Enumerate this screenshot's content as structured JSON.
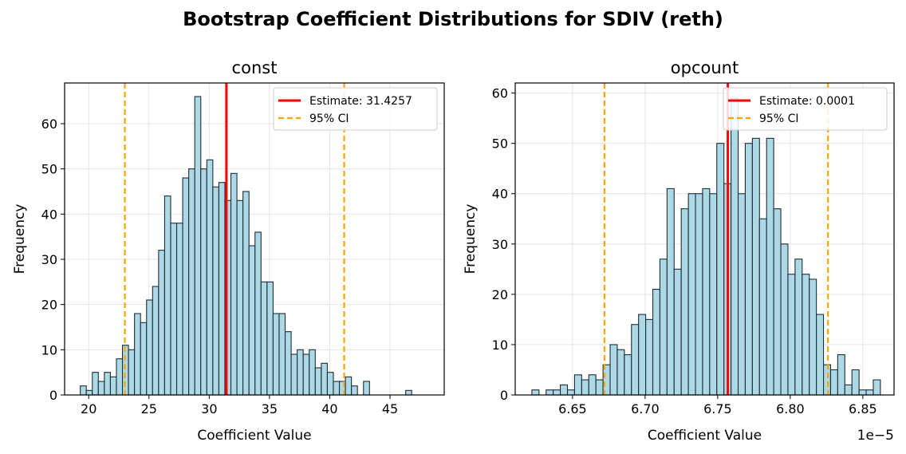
{
  "figure": {
    "title": "Bootstrap Coefficient Distributions for SDIV (reth)"
  },
  "colors": {
    "bar_fill": "#add8e6",
    "bar_edge": "#1f2e33",
    "estimate": "#ff0000",
    "ci": "#ffa500",
    "grid": "#e4e4e4"
  },
  "chart_data": [
    {
      "type": "bar",
      "title": "const",
      "xlabel": "Coefficient Value",
      "ylabel": "Frequency",
      "xlim": [
        18,
        49.5
      ],
      "ylim": [
        0,
        69
      ],
      "xticks": [
        20,
        25,
        30,
        35,
        40,
        45
      ],
      "xtick_labels": [
        "20",
        "25",
        "30",
        "35",
        "40",
        "45"
      ],
      "yticks": [
        0,
        10,
        20,
        30,
        40,
        50,
        60
      ],
      "ytick_labels": [
        "0",
        "10",
        "20",
        "30",
        "40",
        "50",
        "60"
      ],
      "offset_text": "",
      "bin_start": 19.3,
      "bin_width": 0.5,
      "values": [
        2,
        1,
        5,
        3,
        5,
        4,
        8,
        11,
        10,
        18,
        16,
        21,
        24,
        32,
        44,
        38,
        38,
        48,
        50,
        66,
        50,
        52,
        46,
        47,
        43,
        49,
        43,
        45,
        33,
        36,
        25,
        25,
        18,
        18,
        14,
        9,
        10,
        9,
        10,
        6,
        7,
        5,
        3,
        3,
        4,
        2,
        0,
        3,
        0,
        0,
        0,
        0,
        0,
        0,
        1
      ],
      "estimate": {
        "value": 31.4257,
        "label": "Estimate: 31.4257"
      },
      "ci": {
        "lower": 23.0,
        "upper": 41.2,
        "label": "95% CI"
      },
      "grid": true,
      "legend_position": "top-right"
    },
    {
      "type": "bar",
      "title": "opcount",
      "xlabel": "Coefficient Value",
      "ylabel": "Frequency",
      "xlim": [
        6.6105,
        6.8715
      ],
      "ylim": [
        0,
        62
      ],
      "xticks": [
        6.65,
        6.7,
        6.75,
        6.8,
        6.85
      ],
      "xtick_labels": [
        "6.65",
        "6.70",
        "6.75",
        "6.80",
        "6.85"
      ],
      "yticks": [
        0,
        10,
        20,
        30,
        40,
        50,
        60
      ],
      "ytick_labels": [
        "0",
        "10",
        "20",
        "30",
        "40",
        "50",
        "60"
      ],
      "offset_text": "1e−5",
      "bin_start": 6.622,
      "bin_width": 0.0049,
      "values": [
        1,
        0,
        1,
        1,
        2,
        1,
        4,
        3,
        4,
        3,
        6,
        10,
        9,
        8,
        14,
        16,
        15,
        21,
        27,
        41,
        25,
        37,
        40,
        40,
        41,
        40,
        50,
        42,
        59,
        40,
        50,
        51,
        35,
        51,
        37,
        30,
        24,
        27,
        24,
        23,
        16,
        6,
        5,
        8,
        2,
        5,
        1,
        1,
        3
      ],
      "estimate": {
        "value": 6.757,
        "label": "Estimate: 0.0001"
      },
      "ci": {
        "lower": 6.672,
        "upper": 6.826,
        "label": "95% CI"
      },
      "grid": true,
      "legend_position": "top-right"
    }
  ]
}
